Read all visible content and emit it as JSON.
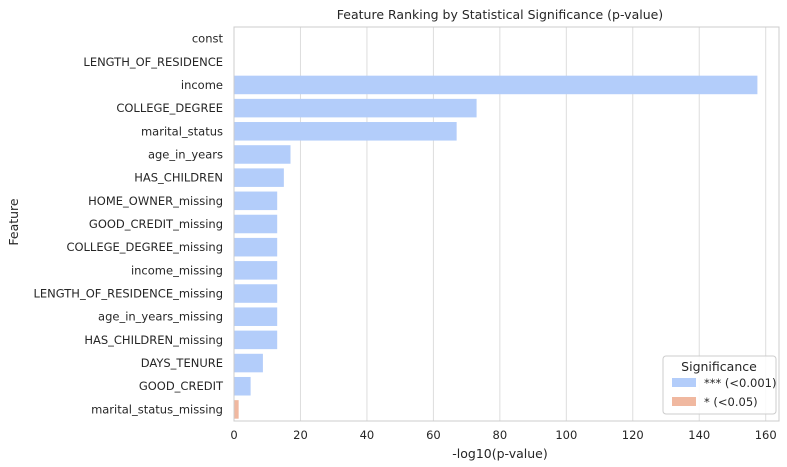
{
  "chart_data": {
    "type": "bar",
    "orientation": "horizontal",
    "title": "Feature Ranking by Statistical Significance (p-value)",
    "xlabel": "-log10(p-value)",
    "ylabel": "Feature",
    "xlim": [
      0,
      164
    ],
    "xticks": [
      0,
      20,
      40,
      60,
      80,
      100,
      120,
      140,
      160
    ],
    "grid": "vertical",
    "categories": [
      "const",
      "LENGTH_OF_RESIDENCE",
      "income",
      "COLLEGE_DEGREE",
      "marital_status",
      "age_in_years",
      "HAS_CHILDREN",
      "HOME_OWNER_missing",
      "GOOD_CREDIT_missing",
      "COLLEGE_DEGREE_missing",
      "income_missing",
      "LENGTH_OF_RESIDENCE_missing",
      "age_in_years_missing",
      "HAS_CHILDREN_missing",
      "DAYS_TENURE",
      "GOOD_CREDIT",
      "marital_status_missing"
    ],
    "values": [
      0,
      0,
      157.5,
      73,
      67,
      17,
      15,
      13,
      13,
      13,
      13,
      13,
      13,
      13,
      8.7,
      5,
      1.4
    ],
    "significance": [
      "***",
      "***",
      "***",
      "***",
      "***",
      "***",
      "***",
      "***",
      "***",
      "***",
      "***",
      "***",
      "***",
      "***",
      "***",
      "***",
      "*"
    ],
    "legend": {
      "title": "Significance",
      "placement": "bottom-right",
      "entries": [
        {
          "key": "***",
          "label": "*** (<0.001)",
          "color": "#b3cdfa"
        },
        {
          "key": "*",
          "label": "* (<0.05)",
          "color": "#f0b8a0"
        }
      ]
    }
  }
}
